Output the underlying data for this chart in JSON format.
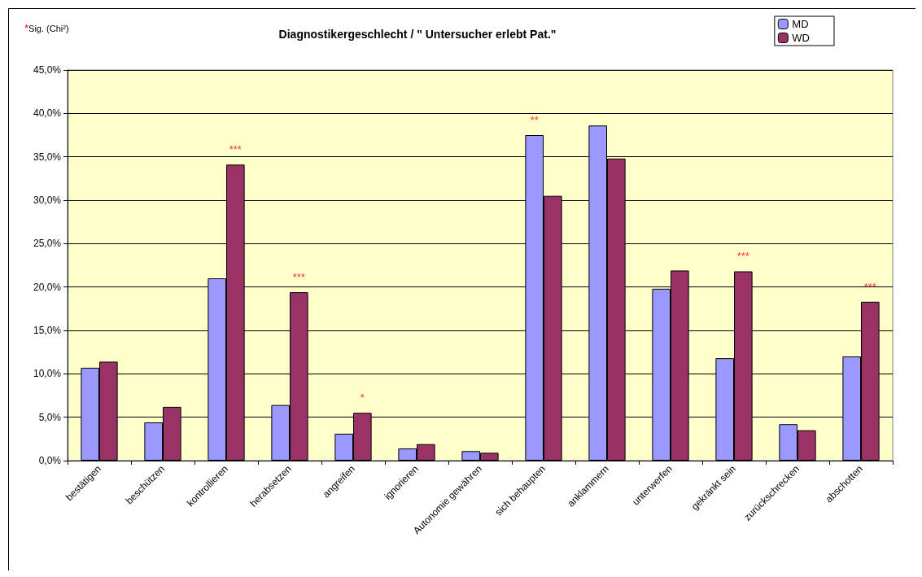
{
  "chart_data": {
    "type": "bar",
    "title": "Diagnostikergeschlecht / \" Untersucher erlebt Pat.\"",
    "categories": [
      "bestätigen",
      "beschützen",
      "kontrollieren",
      "herabsetzen",
      "angreifen",
      "ignorieren",
      "Autonomie gewähren",
      "sich behaupten",
      "anklammern",
      "unterwerfen",
      "gekränkt sein",
      "zurückschrecken",
      "abschotten"
    ],
    "series": [
      {
        "name": "MD",
        "color": "#9999ff",
        "values": [
          10.7,
          4.4,
          21.0,
          6.4,
          3.1,
          1.4,
          1.1,
          37.5,
          38.6,
          19.8,
          11.8,
          4.2,
          12.0
        ]
      },
      {
        "name": "WD",
        "color": "#993366",
        "values": [
          11.4,
          6.2,
          34.1,
          19.4,
          5.5,
          1.9,
          0.9,
          30.5,
          34.8,
          21.9,
          21.8,
          3.5,
          18.3
        ]
      }
    ],
    "ylim": [
      0,
      45
    ],
    "yticks": [
      {
        "value": 0,
        "label": "0,0%"
      },
      {
        "value": 5,
        "label": "5,0%"
      },
      {
        "value": 10,
        "label": "10,0%"
      },
      {
        "value": 15,
        "label": "15,0%"
      },
      {
        "value": 20,
        "label": "20,0%"
      },
      {
        "value": 25,
        "label": "25,0%"
      },
      {
        "value": 30,
        "label": "30,0%"
      },
      {
        "value": 35,
        "label": "35,0%"
      },
      {
        "value": 40,
        "label": "40,0%"
      },
      {
        "value": 45,
        "label": "45,0%"
      }
    ],
    "grid": "y",
    "legend": "top right",
    "annotations": [
      "*Sig. (Chi²)",
      {
        "text": "***",
        "x": "kontrollieren",
        "y": 34.1
      },
      {
        "text": "***",
        "x": "herabsetzen",
        "y": 19.4
      },
      {
        "text": "*",
        "x": "angreifen",
        "y": 5.5
      },
      {
        "text": "**",
        "x": "sich behaupten",
        "y": 37.5
      },
      {
        "text": "***",
        "x": "gekränkt sein",
        "y": 21.8
      },
      {
        "text": "***",
        "x": "abschotten",
        "y": 18.3
      }
    ]
  }
}
